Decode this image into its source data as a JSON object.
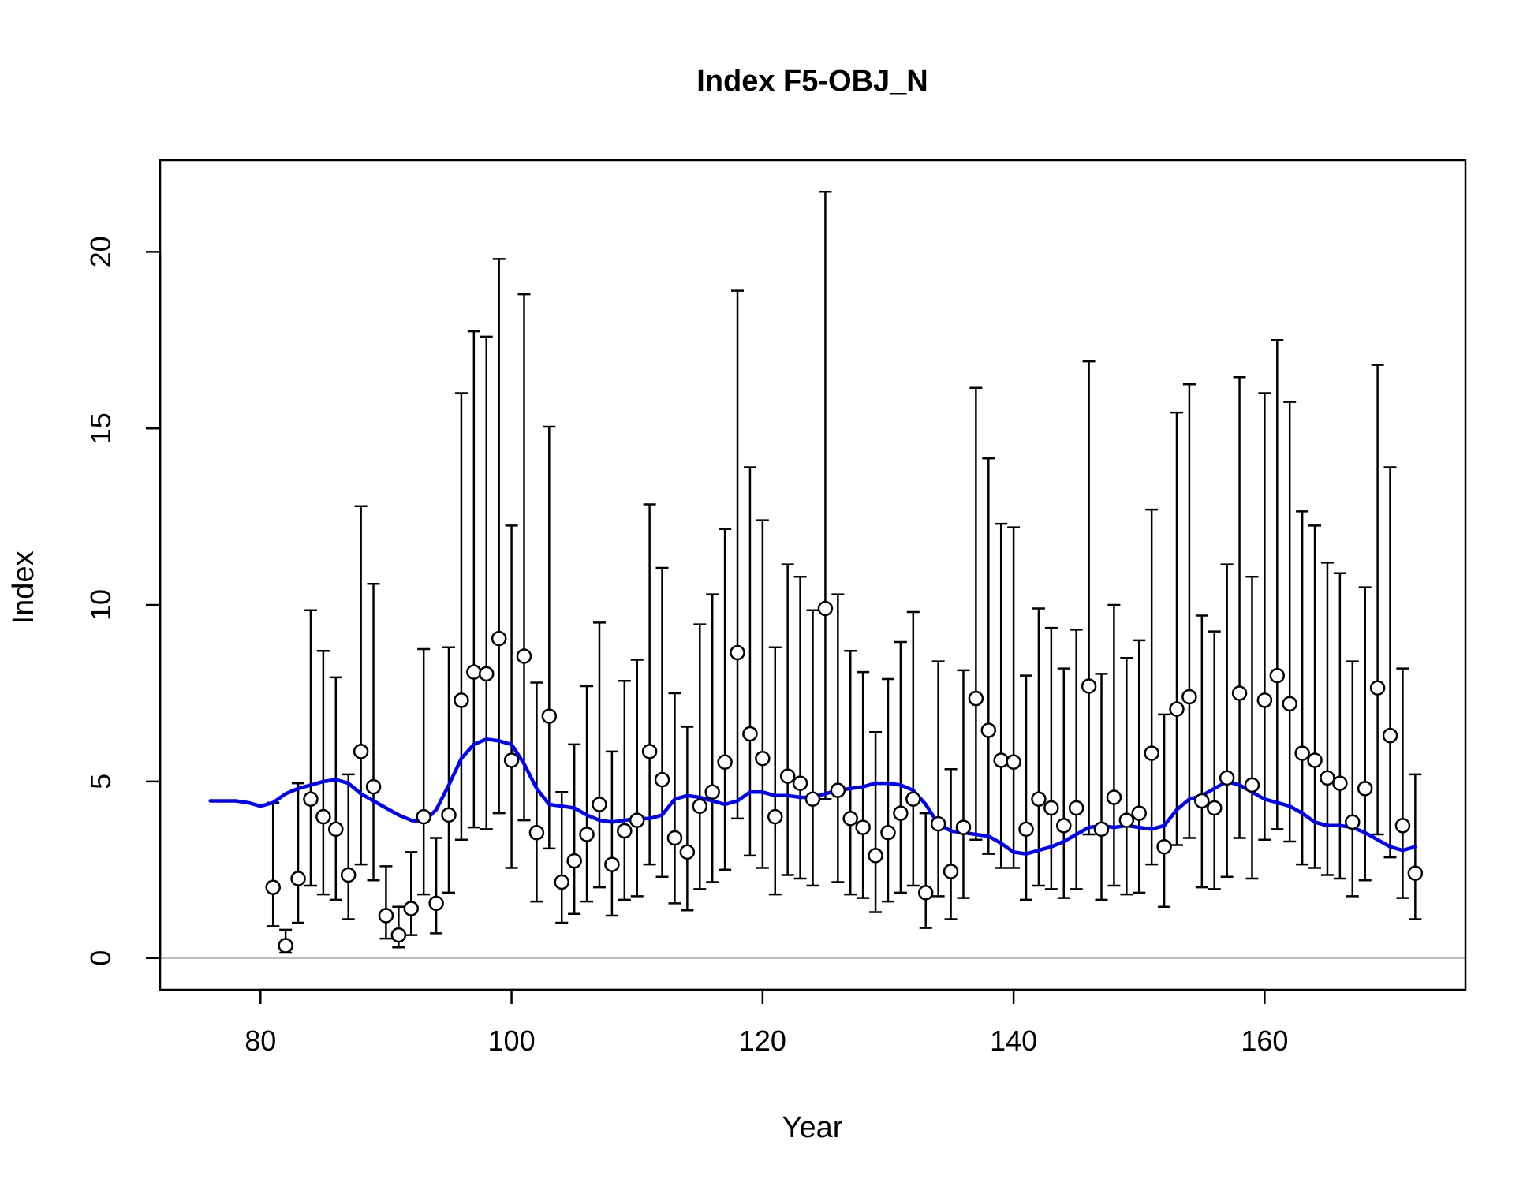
{
  "chart_data": {
    "type": "scatter",
    "title": "Index F5-OBJ_N",
    "xlabel": "Year",
    "ylabel": "Index",
    "xlim": [
      72,
      176
    ],
    "ylim": [
      -0.9,
      22.6
    ],
    "xticks": [
      80,
      100,
      120,
      140,
      160
    ],
    "yticks": [
      0,
      5,
      10,
      15,
      20
    ],
    "grid": false,
    "reference_line": {
      "y": 0,
      "color": "#bebebe"
    },
    "colors": {
      "points": "#000000",
      "errorbars": "#000000",
      "fit": "#0000ff"
    },
    "series": [
      {
        "type": "points_with_errorbars",
        "x": [
          81,
          82,
          83,
          84,
          85,
          86,
          87,
          88,
          89,
          90,
          91,
          92,
          93,
          94,
          95,
          96,
          97,
          98,
          99,
          100,
          101,
          102,
          103,
          104,
          105,
          106,
          107,
          108,
          109,
          110,
          111,
          112,
          113,
          114,
          115,
          116,
          117,
          118,
          119,
          120,
          121,
          122,
          123,
          124,
          125,
          126,
          127,
          128,
          129,
          130,
          131,
          132,
          133,
          134,
          135,
          136,
          137,
          138,
          139,
          140,
          141,
          142,
          143,
          144,
          145,
          146,
          147,
          148,
          149,
          150,
          151,
          152,
          153,
          154,
          155,
          156,
          157,
          158,
          159,
          160,
          161,
          162,
          163,
          164,
          165,
          166,
          167,
          168,
          169,
          170,
          171,
          172
        ],
        "y": [
          2.0,
          0.35,
          2.25,
          4.5,
          4.0,
          3.65,
          2.35,
          5.85,
          4.85,
          1.2,
          0.65,
          1.4,
          4.0,
          1.55,
          4.05,
          7.3,
          8.1,
          8.05,
          9.05,
          5.6,
          8.55,
          3.55,
          6.85,
          2.15,
          2.75,
          3.5,
          4.35,
          2.65,
          3.6,
          3.9,
          5.85,
          5.05,
          3.4,
          3.0,
          4.3,
          4.7,
          5.55,
          8.65,
          6.35,
          5.65,
          4.0,
          5.15,
          4.95,
          4.5,
          9.9,
          4.75,
          3.95,
          3.7,
          2.9,
          3.55,
          4.1,
          4.5,
          1.85,
          3.8,
          2.45,
          3.7,
          7.35,
          6.45,
          5.6,
          5.55,
          3.65,
          4.5,
          4.25,
          3.75,
          4.25,
          7.7,
          3.65,
          4.55,
          3.9,
          4.1,
          5.8,
          3.15,
          7.05,
          7.4,
          4.45,
          4.25,
          5.1,
          7.5,
          4.9,
          7.3,
          8.0,
          7.2,
          5.8,
          5.6,
          5.1,
          4.95,
          3.85,
          4.8,
          7.65,
          6.3,
          3.75,
          2.4
        ],
        "lower": [
          0.9,
          0.15,
          1.0,
          2.05,
          1.8,
          1.65,
          1.1,
          2.65,
          2.2,
          0.55,
          0.3,
          0.65,
          1.8,
          0.7,
          1.85,
          3.35,
          3.7,
          3.65,
          4.1,
          2.55,
          3.9,
          1.6,
          3.1,
          1.0,
          1.25,
          1.6,
          2.0,
          1.2,
          1.65,
          1.75,
          2.65,
          2.3,
          1.55,
          1.35,
          1.95,
          2.15,
          2.5,
          3.95,
          2.9,
          2.55,
          1.8,
          2.35,
          2.25,
          2.05,
          4.5,
          2.15,
          1.8,
          1.7,
          1.3,
          1.6,
          1.85,
          2.05,
          0.85,
          1.75,
          1.1,
          1.7,
          3.35,
          2.95,
          2.55,
          2.55,
          1.65,
          2.05,
          1.95,
          1.7,
          1.95,
          3.5,
          1.65,
          2.05,
          1.8,
          1.85,
          2.65,
          1.45,
          3.2,
          3.4,
          2.0,
          1.95,
          2.3,
          3.4,
          2.25,
          3.35,
          3.65,
          3.3,
          2.65,
          2.55,
          2.35,
          2.25,
          1.75,
          2.2,
          3.5,
          2.85,
          1.7,
          1.1
        ],
        "upper": [
          4.4,
          0.8,
          4.95,
          9.85,
          8.7,
          7.95,
          5.2,
          12.8,
          10.6,
          2.6,
          1.45,
          3.0,
          8.75,
          3.4,
          8.8,
          16.0,
          17.75,
          17.6,
          19.8,
          12.25,
          18.8,
          7.8,
          15.05,
          4.7,
          6.05,
          7.7,
          9.5,
          5.85,
          7.85,
          8.45,
          12.85,
          11.05,
          7.5,
          6.55,
          9.45,
          10.3,
          12.15,
          18.9,
          13.9,
          12.4,
          8.8,
          11.15,
          10.8,
          9.85,
          21.7,
          10.3,
          8.7,
          8.1,
          6.4,
          7.9,
          8.95,
          9.8,
          4.1,
          8.4,
          5.35,
          8.15,
          16.15,
          14.15,
          12.3,
          12.2,
          8.0,
          9.9,
          9.35,
          8.2,
          9.3,
          16.9,
          8.05,
          10.0,
          8.5,
          9.0,
          12.7,
          6.9,
          15.45,
          16.25,
          9.7,
          9.25,
          11.15,
          16.45,
          10.8,
          16.0,
          17.5,
          15.75,
          12.65,
          12.25,
          11.2,
          10.9,
          8.4,
          10.5,
          16.8,
          13.9,
          8.2,
          5.2
        ]
      },
      {
        "type": "line",
        "x": [
          76,
          77,
          78,
          79,
          80,
          81,
          82,
          83,
          84,
          85,
          86,
          87,
          88,
          89,
          90,
          91,
          92,
          93,
          94,
          95,
          96,
          97,
          98,
          99,
          100,
          101,
          102,
          103,
          104,
          105,
          106,
          107,
          108,
          109,
          110,
          111,
          112,
          113,
          114,
          115,
          116,
          117,
          118,
          119,
          120,
          121,
          122,
          123,
          124,
          125,
          126,
          127,
          128,
          129,
          130,
          131,
          132,
          133,
          134,
          135,
          136,
          137,
          138,
          139,
          140,
          141,
          142,
          143,
          144,
          145,
          146,
          147,
          148,
          149,
          150,
          151,
          152,
          153,
          154,
          155,
          156,
          157,
          158,
          159,
          160,
          161,
          162,
          163,
          164,
          165,
          166,
          167,
          168,
          169,
          170,
          171,
          172
        ],
        "y": [
          4.45,
          4.45,
          4.45,
          4.4,
          4.3,
          4.4,
          4.65,
          4.8,
          4.9,
          5.0,
          5.05,
          4.95,
          4.65,
          4.45,
          4.25,
          4.05,
          3.9,
          3.85,
          4.2,
          4.9,
          5.65,
          6.05,
          6.2,
          6.15,
          6.05,
          5.5,
          4.8,
          4.35,
          4.3,
          4.25,
          4.05,
          3.9,
          3.85,
          3.9,
          3.95,
          3.95,
          4.05,
          4.5,
          4.6,
          4.55,
          4.45,
          4.35,
          4.45,
          4.7,
          4.7,
          4.6,
          4.6,
          4.55,
          4.55,
          4.65,
          4.75,
          4.8,
          4.85,
          4.95,
          4.95,
          4.9,
          4.75,
          4.35,
          3.8,
          3.6,
          3.55,
          3.5,
          3.45,
          3.25,
          3.0,
          2.95,
          3.05,
          3.15,
          3.3,
          3.5,
          3.7,
          3.75,
          3.7,
          3.75,
          3.7,
          3.65,
          3.75,
          4.2,
          4.5,
          4.6,
          4.8,
          5.0,
          4.9,
          4.7,
          4.5,
          4.4,
          4.3,
          4.1,
          3.85,
          3.75,
          3.75,
          3.7,
          3.55,
          3.35,
          3.15,
          3.05,
          3.15
        ]
      }
    ]
  }
}
